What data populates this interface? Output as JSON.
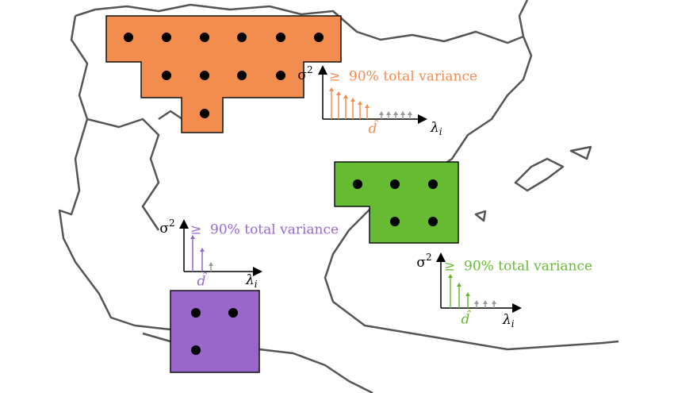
{
  "panels": [
    {
      "y_axis": {
        "symbol": "σ",
        "sup": "2"
      },
      "annotation": "≥  90% total variance",
      "threshold": "d̂",
      "x_axis": {
        "symbol": "λ",
        "sub": "i"
      }
    },
    {
      "y_axis": {
        "symbol": "σ",
        "sup": "2"
      },
      "annotation": "≥  90% total variance",
      "threshold": "d̂",
      "x_axis": {
        "symbol": "λ",
        "sub": "i"
      }
    },
    {
      "y_axis": {
        "symbol": "σ",
        "sup": "2"
      },
      "annotation": "≥  90% total variance",
      "threshold": "d̂",
      "x_axis": {
        "symbol": "λ",
        "sub": "i"
      }
    }
  ]
}
